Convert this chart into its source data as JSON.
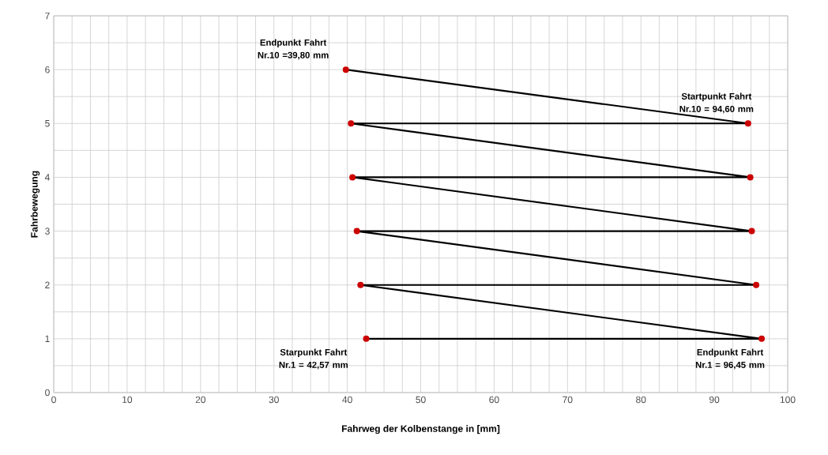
{
  "chart_data": {
    "type": "line",
    "xlabel": "Fahrweg der Kolbenstange in [mm]",
    "ylabel": "Fahrbewegung",
    "x": [
      42.57,
      96.45,
      41.8,
      95.7,
      41.3,
      95.1,
      40.7,
      94.9,
      40.5,
      94.6,
      39.8
    ],
    "series": [
      {
        "color": "#000000",
        "values": [
          1,
          1,
          2,
          2,
          3,
          3,
          4,
          4,
          5,
          5,
          6
        ]
      }
    ],
    "marker": "circle",
    "line_style": "solid",
    "grid": true,
    "xlim": [
      0,
      100
    ],
    "xticks": [
      0,
      10,
      20,
      30,
      40,
      50,
      60,
      70,
      80,
      90,
      100
    ],
    "ylim": [
      0,
      7
    ],
    "yticks": [
      0,
      1,
      2,
      3,
      4,
      5,
      6,
      7
    ],
    "annotations": [
      {
        "text": "Endpunkt Fahrt Nr.10 =39,80 mm",
        "x": 39.8,
        "y": 6
      },
      {
        "text": "Startpunkt Fahrt Nr.10 = 94,60 mm",
        "x": 94.6,
        "y": 5
      },
      {
        "text": "Starpunkt Fahrt Nr.1 = 42,57 mm",
        "x": 42.57,
        "y": 1
      },
      {
        "text": "Endpunkt Fahrt Nr.1 = 96,45 mm",
        "x": 96.45,
        "y": 1
      }
    ]
  }
}
